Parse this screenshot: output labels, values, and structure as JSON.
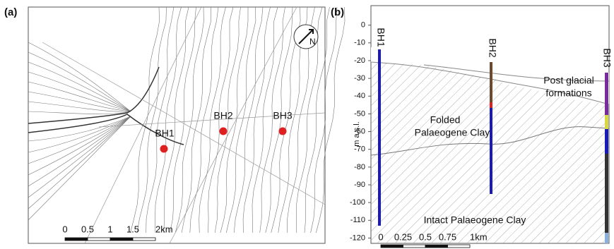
{
  "panels": [
    {
      "label": "(a)",
      "boreholes": [
        "BH1",
        "BH2",
        "BH3"
      ],
      "scale_bar": [
        "0",
        "0.5",
        "1",
        "1.5",
        "2km"
      ]
    },
    {
      "label": "(b)",
      "axis_label": "m a.s.l.",
      "ylim": [
        -123,
        11
      ],
      "yticks": [
        0,
        -10,
        -20,
        -30,
        -40,
        -50,
        -60,
        -70,
        -80,
        -90,
        -100,
        -110,
        -120
      ],
      "boreholes": [
        "BH1",
        "BH2",
        "BH3"
      ],
      "annotations": [
        {
          "lines": [
            "Post glacial",
            "formations"
          ]
        },
        {
          "lines": [
            "Folded",
            "Palaeogene  Clay"
          ]
        },
        {
          "lines": [
            "Intact Palaeogene Clay"
          ]
        }
      ],
      "scale_bar": [
        "0",
        "0.25",
        "0.5",
        "0.75",
        "1km"
      ]
    }
  ]
}
